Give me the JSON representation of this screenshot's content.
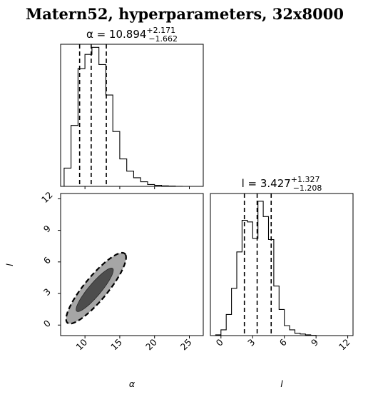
{
  "figure": {
    "title": "Matern52, hyperparameters, 32x8000"
  },
  "chart_data": [
    {
      "panel": "alpha-marginal",
      "type": "histogram",
      "title": {
        "prefix": "α = 10.894",
        "plus": "+2.171",
        "minus": "−1.662"
      },
      "xlim": [
        6.5,
        27
      ],
      "bins": [
        7.0,
        8.0,
        9.0,
        10.0,
        11.0,
        12.0,
        13.0,
        14.0,
        15.0,
        16.0,
        17.0,
        18.0,
        19.0,
        20.0,
        21.0,
        22.0,
        23.0,
        24.0,
        25.0,
        26.0,
        27.0
      ],
      "counts": [
        180,
        600,
        1160,
        1300,
        1370,
        1200,
        900,
        540,
        270,
        150,
        85,
        45,
        18,
        10,
        5,
        3,
        1,
        0,
        0,
        0
      ],
      "quantiles": [
        9.232,
        10.894,
        13.065
      ],
      "ylim": [
        0,
        1400
      ]
    },
    {
      "panel": "joint",
      "type": "contour",
      "xlabel": "α",
      "ylabel": "l",
      "xticks": [
        "10",
        "15",
        "20",
        "25"
      ],
      "yticks": [
        "0",
        "3",
        "6",
        "9",
        "12"
      ],
      "xlim": [
        6.5,
        27
      ],
      "ylim": [
        -1,
        12.5
      ],
      "outer": {
        "center": [
          11.6,
          3.5
        ],
        "rx": 5.3,
        "ry": 1.35,
        "angle": 37
      },
      "inner": {
        "center": [
          11.4,
          3.35
        ],
        "rx": 3.3,
        "ry": 0.72,
        "angle": 37
      }
    },
    {
      "panel": "l-marginal",
      "type": "histogram",
      "title": {
        "prefix": "l = 3.427",
        "plus": "+1.327",
        "minus": "−1.208"
      },
      "xlabel": "l",
      "xticks": [
        "0",
        "3",
        "6",
        "9",
        "12"
      ],
      "xlim": [
        -1,
        12.5
      ],
      "bins": [
        -0.5,
        0.0,
        0.5,
        1.0,
        1.5,
        2.0,
        2.5,
        3.0,
        3.5,
        4.0,
        4.5,
        5.0,
        5.5,
        6.0,
        6.5,
        7.0,
        7.5,
        8.0,
        8.5,
        9.0,
        9.5,
        10.0
      ],
      "counts": [
        20,
        150,
        550,
        1230,
        2180,
        3000,
        2960,
        2530,
        3500,
        3100,
        2500,
        1290,
        680,
        260,
        150,
        60,
        40,
        20,
        5,
        0,
        0
      ],
      "quantiles": [
        2.219,
        3.427,
        4.754
      ],
      "ylim": [
        0,
        3700
      ]
    }
  ]
}
